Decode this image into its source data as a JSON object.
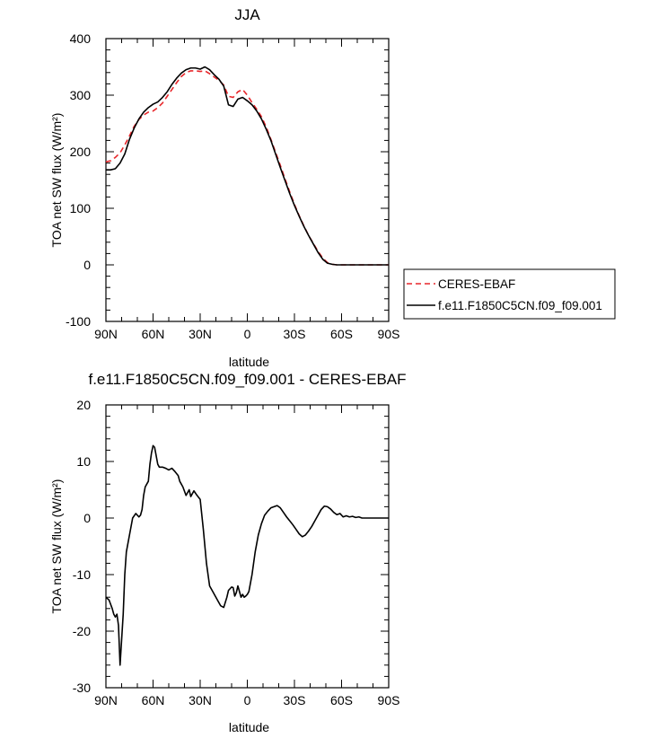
{
  "chart_data": [
    {
      "type": "line",
      "title": "JJA",
      "xlabel": "latitude",
      "ylabel": "TOA net SW flux (W/m²)",
      "xlim": [
        90,
        -90
      ],
      "ylim": [
        -100,
        400
      ],
      "xticks": [
        90,
        60,
        30,
        0,
        -30,
        -60,
        -90
      ],
      "xtick_labels": [
        "90N",
        "60N",
        "30N",
        "0",
        "30S",
        "60S",
        "90S"
      ],
      "yticks": [
        -100,
        0,
        100,
        200,
        300,
        400
      ],
      "ytick_labels": [
        "-100",
        "0",
        "100",
        "200",
        "300",
        "400"
      ],
      "legend_position": "right",
      "series": [
        {
          "name": "CERES-EBAF",
          "color": "#e8262a",
          "dash": "dashed",
          "x": [
            90,
            87,
            84,
            81,
            78,
            75,
            72,
            69,
            66,
            63,
            60,
            57,
            54,
            51,
            48,
            45,
            42,
            39,
            36,
            33,
            30,
            27,
            24,
            21,
            18,
            15,
            12,
            9,
            6,
            3,
            0,
            -3,
            -6,
            -9,
            -12,
            -15,
            -18,
            -21,
            -24,
            -27,
            -30,
            -33,
            -36,
            -39,
            -42,
            -45,
            -48,
            -51,
            -54,
            -57,
            -60,
            -63,
            -66,
            -69,
            -72,
            -75,
            -78,
            -81,
            -84,
            -87,
            -90
          ],
          "y": [
            182,
            184,
            190,
            198,
            212,
            228,
            245,
            257,
            265,
            270,
            272,
            278,
            286,
            298,
            310,
            322,
            333,
            340,
            343,
            343,
            342,
            343,
            338,
            332,
            326,
            318,
            298,
            296,
            306,
            310,
            300,
            287,
            275,
            262,
            244,
            222,
            199,
            176,
            152,
            129,
            107,
            87,
            69,
            52,
            38,
            24,
            12,
            4,
            1,
            0,
            0,
            0,
            0,
            0,
            0,
            0,
            0,
            0,
            0,
            0,
            0
          ]
        },
        {
          "name": "f.e11.F1850C5CN.f09_f09.001",
          "color": "#000000",
          "dash": "solid",
          "x": [
            90,
            87,
            84,
            81,
            78,
            75,
            72,
            69,
            66,
            63,
            60,
            57,
            54,
            51,
            48,
            45,
            42,
            39,
            36,
            33,
            30,
            27,
            24,
            21,
            18,
            15,
            12,
            9,
            6,
            3,
            0,
            -3,
            -6,
            -9,
            -12,
            -15,
            -18,
            -21,
            -24,
            -27,
            -30,
            -33,
            -36,
            -39,
            -42,
            -45,
            -48,
            -51,
            -54,
            -57,
            -60,
            -63,
            -66,
            -69,
            -72,
            -75,
            -78,
            -81,
            -84,
            -87,
            -90
          ],
          "y": [
            168,
            168,
            170,
            180,
            196,
            222,
            242,
            258,
            270,
            278,
            284,
            288,
            296,
            306,
            319,
            330,
            339,
            345,
            348,
            348,
            346,
            350,
            345,
            336,
            328,
            316,
            283,
            280,
            293,
            296,
            290,
            283,
            272,
            258,
            240,
            220,
            196,
            172,
            149,
            126,
            105,
            86,
            68,
            52,
            37,
            22,
            10,
            3,
            1,
            0,
            0,
            0,
            0,
            0,
            0,
            0,
            0,
            0,
            0,
            0,
            0
          ]
        }
      ]
    },
    {
      "type": "line",
      "title": "f.e11.F1850C5CN.f09_f09.001 - CERES-EBAF",
      "xlabel": "latitude",
      "ylabel": "TOA net SW flux (W/m²)",
      "xlim": [
        90,
        -90
      ],
      "ylim": [
        -30,
        20
      ],
      "xticks": [
        90,
        60,
        30,
        0,
        -30,
        -60,
        -90
      ],
      "xtick_labels": [
        "90N",
        "60N",
        "30N",
        "0",
        "30S",
        "60S",
        "90S"
      ],
      "yticks": [
        -30,
        -20,
        -10,
        0,
        10,
        20
      ],
      "ytick_labels": [
        "-30",
        "-20",
        "-10",
        "0",
        "10",
        "20"
      ],
      "series": [
        {
          "color": "#000000",
          "dash": "solid",
          "x": [
            90,
            88,
            86,
            85,
            84,
            83,
            82,
            81,
            79,
            78,
            77,
            75,
            73,
            71,
            69,
            68,
            67,
            66,
            65,
            64,
            63,
            62,
            61,
            60,
            59,
            58,
            57,
            56,
            54,
            52,
            50,
            48,
            46,
            44,
            43,
            41,
            39,
            38,
            37,
            36,
            34,
            32,
            30,
            28,
            26,
            24,
            22,
            19,
            17,
            15,
            13,
            12,
            11,
            10,
            9,
            8,
            7,
            6,
            5,
            4,
            3,
            2,
            1,
            0,
            -1,
            -2,
            -3,
            -4,
            -5,
            -7,
            -9,
            -11,
            -13,
            -15,
            -17,
            -19,
            -21,
            -23,
            -25,
            -27,
            -29,
            -31,
            -33,
            -35,
            -37,
            -39,
            -41,
            -43,
            -45,
            -47,
            -49,
            -51,
            -53,
            -55,
            -57,
            -59,
            -61,
            -63,
            -65,
            -67,
            -69,
            -71,
            -73,
            -75,
            -77,
            -79,
            -81,
            -83,
            -85,
            -87,
            -90
          ],
          "y": [
            -14,
            -14.5,
            -16,
            -17,
            -17.5,
            -17,
            -19,
            -26,
            -17,
            -10,
            -6,
            -3,
            0,
            0.8,
            0.2,
            0.5,
            1.5,
            4,
            5.5,
            6,
            6.5,
            9.5,
            11.5,
            12.8,
            12.5,
            11,
            9.5,
            9,
            9,
            8.8,
            8.5,
            8.8,
            8.2,
            7.5,
            6.5,
            5.5,
            4,
            4.5,
            5,
            3.8,
            4.8,
            4,
            3.3,
            -2,
            -8,
            -12,
            -13,
            -14.5,
            -15.5,
            -15.8,
            -14,
            -12.8,
            -12.5,
            -12.2,
            -12.3,
            -13.8,
            -13.2,
            -12,
            -13,
            -14,
            -13.5,
            -14,
            -13.8,
            -13.5,
            -13,
            -11.5,
            -10,
            -8,
            -6,
            -3,
            -1,
            0.5,
            1.2,
            1.8,
            2.0,
            2.2,
            1.8,
            1.0,
            0.2,
            -0.5,
            -1.2,
            -2.0,
            -2.8,
            -3.3,
            -3.0,
            -2.3,
            -1.5,
            -0.5,
            0.5,
            1.5,
            2.1,
            2.0,
            1.6,
            1.0,
            0.6,
            0.8,
            0.2,
            0.4,
            0.2,
            0.3,
            0.1,
            0.2,
            0.0,
            0.0,
            0.0,
            0.0,
            0.0,
            0.0,
            0.0,
            0.0,
            0.0
          ]
        }
      ]
    }
  ]
}
